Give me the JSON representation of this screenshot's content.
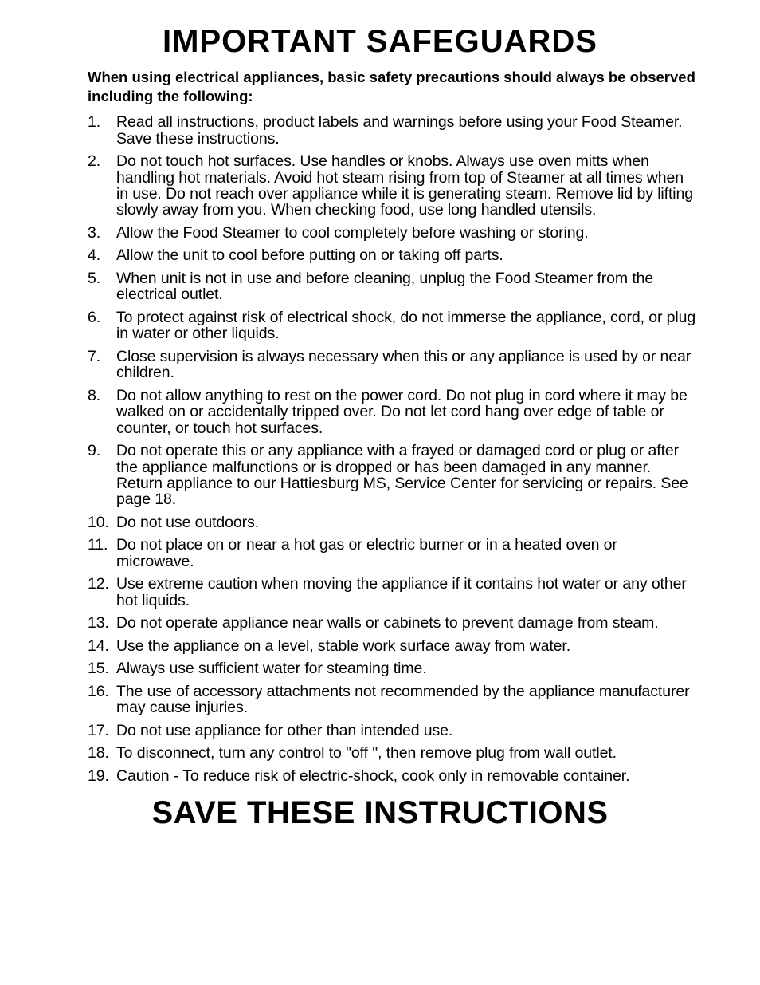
{
  "document": {
    "title": "IMPORTANT SAFEGUARDS",
    "intro": "When using electrical appliances, basic safety precautions should always be observed including the following:",
    "footer": "SAVE THESE INSTRUCTIONS",
    "items": [
      {
        "n": "1.",
        "text": "Read all instructions, product labels and warnings before using your Food Steamer. Save these instructions."
      },
      {
        "n": "2.",
        "text": "Do not touch hot surfaces. Use handles or knobs. Always use oven mitts when handling hot materials. Avoid hot steam rising from top of Steamer at all times when in use. Do not reach over appliance while it is generating steam. Remove lid by lifting slowly away from you. When checking food, use long handled utensils."
      },
      {
        "n": "3.",
        "text": "Allow the Food Steamer to cool completely before washing or storing."
      },
      {
        "n": "4.",
        "text": "Allow the unit to cool before putting on or taking off parts."
      },
      {
        "n": "5.",
        "text": "When unit is not in use and before cleaning, unplug the Food Steamer from the electrical outlet."
      },
      {
        "n": "6.",
        "text": "To protect against risk of electrical shock, do not immerse the appliance, cord, or plug in water or other liquids."
      },
      {
        "n": "7.",
        "text": "Close supervision is always necessary when this or any appliance is used by or near children."
      },
      {
        "n": "8.",
        "text": "Do not allow anything to rest on the power cord. Do not plug in cord where it may be walked on or accidentally tripped over. Do not let cord hang over edge of table or counter, or touch hot surfaces."
      },
      {
        "n": "9.",
        "text": "Do not operate this or any appliance with a frayed or damaged cord or plug or after the appliance malfunctions or is dropped or has been damaged in any manner. Return appliance to our Hattiesburg MS, Service Center for servicing or repairs. See page 18."
      },
      {
        "n": "10.",
        "text": "Do not use outdoors."
      },
      {
        "n": "11.",
        "text": "Do not place on or near a hot gas or electric burner or in a heated oven or microwave."
      },
      {
        "n": "12.",
        "text": "Use extreme caution when moving the appliance if it contains hot water or any other hot liquids."
      },
      {
        "n": "13.",
        "text": "Do not operate appliance near walls or cabinets to prevent damage from steam."
      },
      {
        "n": "14.",
        "text": "Use the appliance on a level, stable work surface away from water."
      },
      {
        "n": "15.",
        "text": "Always use sufficient water for steaming time."
      },
      {
        "n": "16.",
        "text": "The use of accessory attachments not recommended by the appliance manufacturer may cause injuries."
      },
      {
        "n": "17.",
        "text": "Do not use appliance for other than intended use."
      },
      {
        "n": "18.",
        "text": "To disconnect, turn any control to \"off \", then remove plug from wall outlet."
      },
      {
        "n": "19.",
        "text": "Caution - To reduce risk of electric-shock, cook only in removable container."
      }
    ],
    "styles": {
      "background_color": "#ffffff",
      "text_color": "#000000",
      "title_fontsize": 40,
      "title_fontweight": 900,
      "intro_fontsize": 18.5,
      "intro_fontweight": "bold",
      "body_fontsize": 19.5,
      "body_fontweight": "normal",
      "line_height": 1.05,
      "font_family": "Arial"
    }
  }
}
